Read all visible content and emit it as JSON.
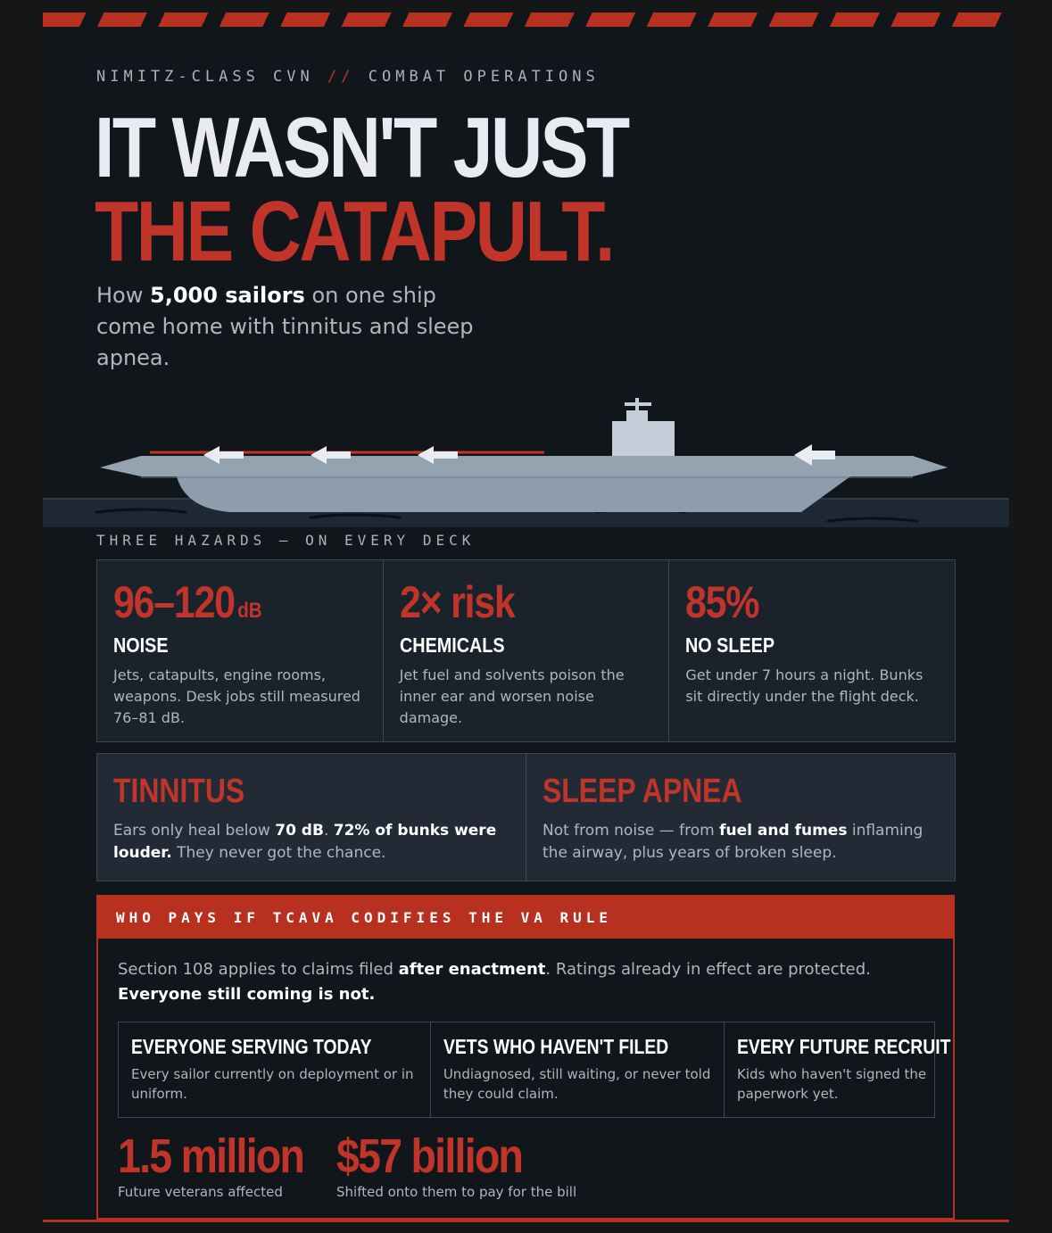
{
  "header": {
    "kicker_left": "NIMITZ-CLASS CVN",
    "kicker_sep": "//",
    "kicker_right": "COMBAT OPERATIONS",
    "title_line1": "IT WASN'T JUST",
    "title_line2": "THE CATAPULT.",
    "subtitle_pre": "How ",
    "subtitle_bold": "5,000 sailors",
    "subtitle_post": " on one ship come home with tinnitus and sleep apnea."
  },
  "hazards_label": "THREE HAZARDS — ON EVERY DECK",
  "hazards": [
    {
      "stat": "96–120",
      "unit": "dB",
      "title": "NOISE",
      "text": "Jets, catapults, engine rooms, weapons. Desk jobs still measured 76–81 dB."
    },
    {
      "stat": "2× risk",
      "unit": "",
      "title": "CHEMICALS",
      "text": "Jet fuel and solvents poison the inner ear and worsen noise damage."
    },
    {
      "stat": "85%",
      "unit": "",
      "title": "NO SLEEP",
      "text": "Get under 7 hours a night. Bunks sit directly under the flight deck."
    }
  ],
  "conditions": [
    {
      "title": "TINNITUS",
      "t1": "Ears only heal below ",
      "b1": "70 dB",
      "t2": ". ",
      "b2": "72% of bunks were louder.",
      "t3": " They never got the chance."
    },
    {
      "title": "SLEEP APNEA",
      "t1": "Not from noise — from ",
      "b1": "fuel and fumes",
      "t2": " inflaming the airway, plus years of broken sleep."
    }
  ],
  "pays": {
    "header": "WHO PAYS IF TCAVA CODIFIES THE VA RULE",
    "lead_t1": "Section 108 applies to claims filed ",
    "lead_b1": "after enactment",
    "lead_t2": ". Ratings already in effect are protected. ",
    "lead_b2": "Everyone still coming is not.",
    "groups": [
      {
        "title": "EVERYONE SERVING TODAY",
        "text": "Every sailor currently on deployment or in uniform."
      },
      {
        "title": "VETS WHO HAVEN'T FILED",
        "text": "Undiagnosed, still waiting, or never told they could claim."
      },
      {
        "title": "EVERY FUTURE RECRUIT",
        "text": "Kids who haven't signed the paperwork yet."
      }
    ],
    "stat1_value": "1.5 million",
    "stat1_caption": "Future veterans affected",
    "stat2_value": "$57 billion",
    "stat2_caption": "Shifted onto them to pay for the bill"
  },
  "colors": {
    "accent": "#c0342a",
    "background": "#11161b",
    "ship": "#95a3b1"
  },
  "icons": [
    "hazard-stripes",
    "carrier-ship-illustration",
    "launch-arrow-icon",
    "wave-icon"
  ]
}
